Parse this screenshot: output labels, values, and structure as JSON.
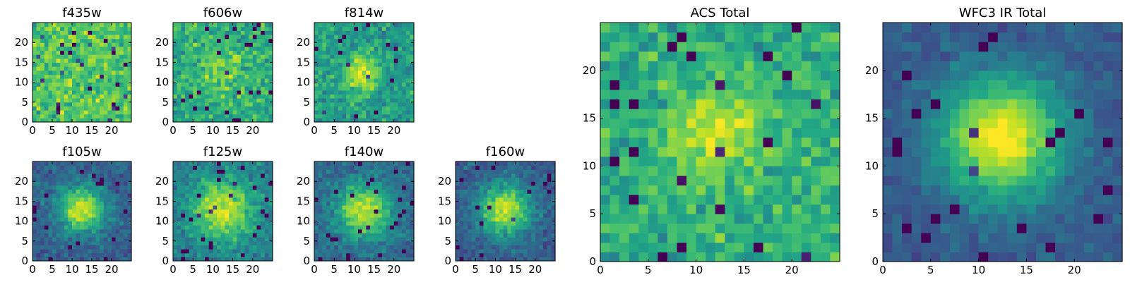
{
  "chart_data": [
    {
      "type": "heatmap",
      "title": "f435w",
      "xlabel": "",
      "ylabel": "",
      "xlim": [
        0,
        25
      ],
      "ylim": [
        0,
        25
      ],
      "grid": [
        25,
        25
      ],
      "x_ticks": [
        "0",
        "5",
        "10",
        "15",
        "20"
      ],
      "y_ticks": [
        "0",
        "5",
        "10",
        "15",
        "20"
      ],
      "colormap": "viridis",
      "source_center": [
        12,
        12.5
      ],
      "source_peak": 0.0,
      "source_width": 4,
      "background": 0.72,
      "noise": 0.28,
      "seed": 11
    },
    {
      "type": "heatmap",
      "title": "f606w",
      "xlabel": "",
      "ylabel": "",
      "xlim": [
        0,
        25
      ],
      "ylim": [
        0,
        25
      ],
      "grid": [
        25,
        25
      ],
      "x_ticks": [
        "0",
        "5",
        "10",
        "15",
        "20"
      ],
      "y_ticks": [
        "0",
        "5",
        "10",
        "15",
        "20"
      ],
      "colormap": "viridis",
      "source_center": [
        12,
        13
      ],
      "source_peak": 0.22,
      "source_width": 3.5,
      "background": 0.62,
      "noise": 0.28,
      "seed": 23
    },
    {
      "type": "heatmap",
      "title": "f814w",
      "xlabel": "",
      "ylabel": "",
      "xlim": [
        0,
        25
      ],
      "ylim": [
        0,
        25
      ],
      "grid": [
        25,
        25
      ],
      "x_ticks": [
        "0",
        "5",
        "10",
        "15",
        "20"
      ],
      "y_ticks": [
        "0",
        "5",
        "10",
        "15",
        "20"
      ],
      "colormap": "viridis",
      "source_center": [
        12,
        12.5
      ],
      "source_peak": 0.38,
      "source_width": 3.2,
      "background": 0.56,
      "noise": 0.26,
      "seed": 37
    },
    {
      "type": "heatmap",
      "title": "f105w",
      "xlabel": "",
      "ylabel": "",
      "xlim": [
        0,
        25
      ],
      "ylim": [
        0,
        25
      ],
      "grid": [
        25,
        25
      ],
      "x_ticks": [
        "0",
        "5",
        "10",
        "15",
        "20"
      ],
      "y_ticks": [
        "0",
        "5",
        "10",
        "15",
        "20"
      ],
      "colormap": "viridis",
      "source_center": [
        12.5,
        13
      ],
      "source_peak": 0.62,
      "source_width": 4.2,
      "background": 0.3,
      "noise": 0.18,
      "seed": 41
    },
    {
      "type": "heatmap",
      "title": "f125w",
      "xlabel": "",
      "ylabel": "",
      "xlim": [
        0,
        25
      ],
      "ylim": [
        0,
        25
      ],
      "grid": [
        25,
        25
      ],
      "x_ticks": [
        "0",
        "5",
        "10",
        "15",
        "20"
      ],
      "y_ticks": [
        "0",
        "5",
        "10",
        "15",
        "20"
      ],
      "colormap": "viridis",
      "source_center": [
        12.5,
        13
      ],
      "source_peak": 0.5,
      "source_width": 5.5,
      "background": 0.42,
      "noise": 0.2,
      "seed": 53
    },
    {
      "type": "heatmap",
      "title": "f140w",
      "xlabel": "",
      "ylabel": "",
      "xlim": [
        0,
        25
      ],
      "ylim": [
        0,
        25
      ],
      "grid": [
        25,
        25
      ],
      "x_ticks": [
        "0",
        "5",
        "10",
        "15",
        "20"
      ],
      "y_ticks": [
        "0",
        "5",
        "10",
        "15",
        "20"
      ],
      "colormap": "viridis",
      "source_center": [
        12.5,
        12.5
      ],
      "source_peak": 0.58,
      "source_width": 4.8,
      "background": 0.34,
      "noise": 0.18,
      "seed": 67
    },
    {
      "type": "heatmap",
      "title": "f160w",
      "xlabel": "",
      "ylabel": "",
      "xlim": [
        0,
        25
      ],
      "ylim": [
        0,
        25
      ],
      "grid": [
        25,
        25
      ],
      "x_ticks": [
        "0",
        "5",
        "10",
        "15",
        "20"
      ],
      "y_ticks": [
        "0",
        "5",
        "10",
        "15",
        "20"
      ],
      "colormap": "viridis",
      "source_center": [
        12.5,
        13
      ],
      "source_peak": 0.62,
      "source_width": 4.5,
      "background": 0.3,
      "noise": 0.17,
      "seed": 79
    },
    {
      "type": "heatmap",
      "title": "ACS Total",
      "xlabel": "",
      "ylabel": "",
      "xlim": [
        0,
        25
      ],
      "ylim": [
        0,
        25
      ],
      "grid": [
        25,
        25
      ],
      "x_ticks": [
        "0",
        "5",
        "10",
        "15",
        "20"
      ],
      "y_ticks": [
        "0",
        "5",
        "10",
        "15",
        "20"
      ],
      "colormap": "viridis",
      "source_center": [
        12,
        13.5
      ],
      "source_peak": 0.3,
      "source_width": 3.5,
      "background": 0.62,
      "noise": 0.24,
      "seed": 97
    },
    {
      "type": "heatmap",
      "title": "WFC3 IR Total",
      "xlabel": "",
      "ylabel": "",
      "xlim": [
        0,
        25
      ],
      "ylim": [
        0,
        25
      ],
      "grid": [
        25,
        25
      ],
      "x_ticks": [
        "0",
        "5",
        "10",
        "15",
        "20"
      ],
      "y_ticks": [
        "0",
        "5",
        "10",
        "15",
        "20"
      ],
      "colormap": "viridis",
      "source_center": [
        12.5,
        13
      ],
      "source_peak": 0.72,
      "source_width": 4.5,
      "background": 0.28,
      "noise": 0.12,
      "seed": 101
    }
  ],
  "colors": {
    "viridis": [
      "#440154",
      "#482475",
      "#414487",
      "#355f8d",
      "#2a788e",
      "#21918c",
      "#22a884",
      "#44bf70",
      "#7ad151",
      "#bddf26",
      "#fde725"
    ],
    "axis": "#000000",
    "background": "#ffffff"
  }
}
